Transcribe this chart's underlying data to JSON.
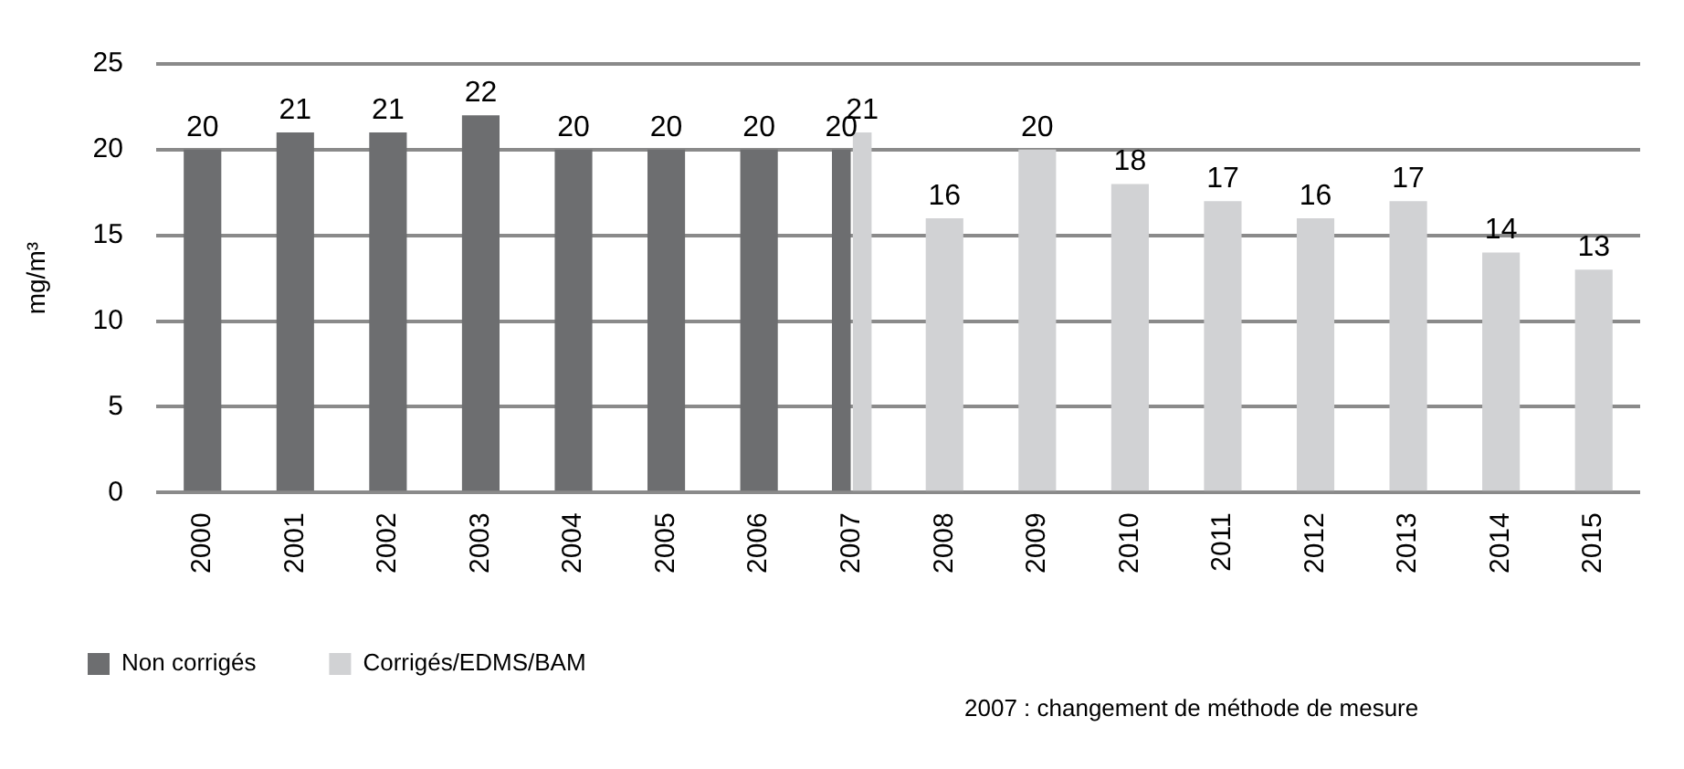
{
  "chart_data": {
    "type": "bar",
    "ylabel": "mg/m³",
    "categories": [
      "2000",
      "2001",
      "2002",
      "2003",
      "2004",
      "2005",
      "2006",
      "2007",
      "2008",
      "2009",
      "2010",
      "2011",
      "2012",
      "2013",
      "2014",
      "2015"
    ],
    "series": [
      {
        "name": "Non corrigés",
        "color": "#6d6e70",
        "values": [
          20,
          21,
          21,
          22,
          20,
          20,
          20,
          20,
          null,
          null,
          null,
          null,
          null,
          null,
          null,
          null
        ]
      },
      {
        "name": "Corrigés/EDMS/BAM",
        "color": "#d1d2d4",
        "values": [
          null,
          null,
          null,
          null,
          null,
          null,
          null,
          21,
          16,
          20,
          18,
          17,
          16,
          17,
          14,
          13
        ]
      }
    ],
    "ylim": [
      0,
      25
    ],
    "yticks": [
      0,
      5,
      10,
      15,
      20,
      25
    ],
    "grid": "y",
    "legend": "bottom",
    "data_labels": true,
    "annotations": [
      "2007 : changement de méthode de mesure"
    ]
  }
}
